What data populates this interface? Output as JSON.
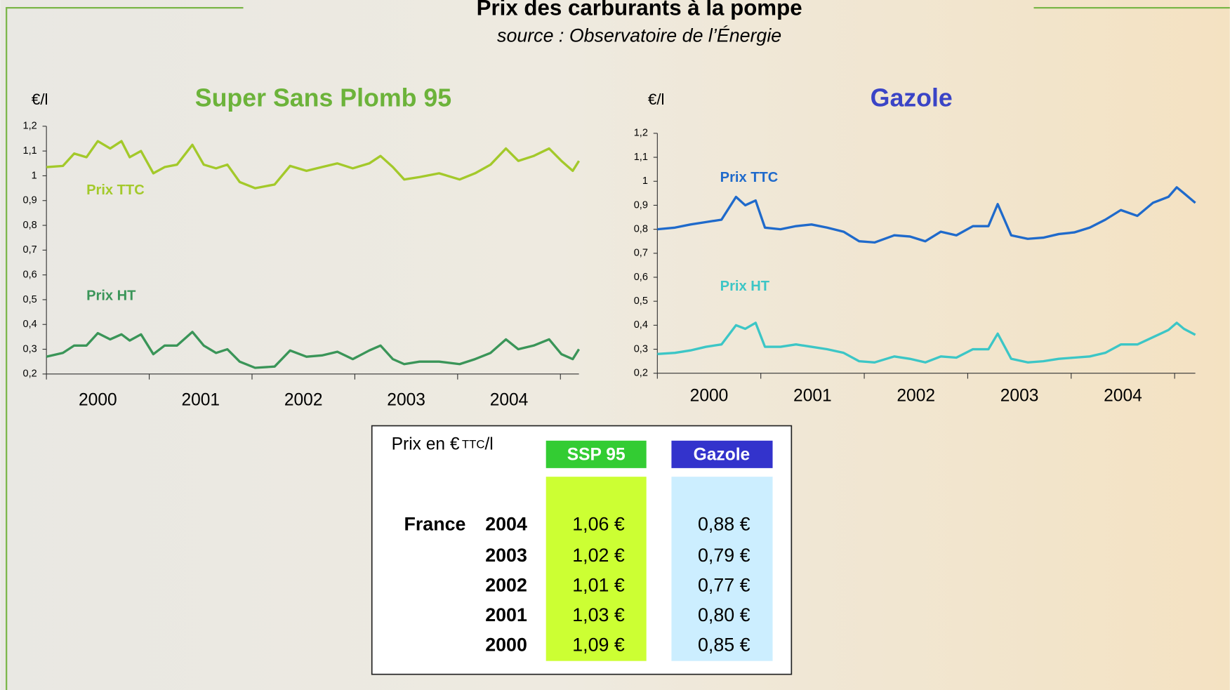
{
  "header": {
    "title": "Prix des carburants à la pompe",
    "subtitle": "source : Observatoire de l’Énergie"
  },
  "chart_data": [
    {
      "type": "line",
      "title": "Super Sans Plomb 95",
      "y_label": "€/l",
      "categories": [
        "2000",
        "2001",
        "2002",
        "2003",
        "2004"
      ],
      "x": [
        2000.0,
        2000.16,
        2000.27,
        2000.39,
        2000.5,
        2000.62,
        2000.73,
        2000.81,
        2000.92,
        2001.04,
        2001.15,
        2001.27,
        2001.42,
        2001.53,
        2001.65,
        2001.76,
        2001.88,
        2002.03,
        2002.22,
        2002.37,
        2002.53,
        2002.68,
        2002.83,
        2002.98,
        2003.14,
        2003.25,
        2003.37,
        2003.48,
        2003.63,
        2003.82,
        2004.02,
        2004.17,
        2004.32,
        2004.47,
        2004.59,
        2004.74,
        2004.89,
        2005.01,
        2005.12,
        2005.18
      ],
      "xlim": [
        2000,
        2005.18
      ],
      "xticks": [
        2000,
        2001,
        2002,
        2003,
        2004,
        2005
      ],
      "ylim": [
        0.2,
        1.2
      ],
      "yticks": [
        {
          "value": 0.2,
          "label": "0,2"
        },
        {
          "value": 0.3,
          "label": "0,3"
        },
        {
          "value": 0.4,
          "label": "0,4"
        },
        {
          "value": 0.5,
          "label": "0,5"
        },
        {
          "value": 0.6,
          "label": "0,6"
        },
        {
          "value": 0.7,
          "label": "0,7"
        },
        {
          "value": 0.8,
          "label": "0,8"
        },
        {
          "value": 0.9,
          "label": "0,9"
        },
        1,
        {
          "value": 1.1,
          "label": "1,1"
        },
        {
          "value": 1.2,
          "label": "1,2"
        }
      ],
      "title_color": "#6cb33a",
      "series": [
        {
          "name": "Prix TTC",
          "color": "#a3c92a",
          "values": [
            1.035,
            1.04,
            1.09,
            1.075,
            1.14,
            1.11,
            1.14,
            1.075,
            1.1,
            1.01,
            1.035,
            1.045,
            1.125,
            1.045,
            1.03,
            1.045,
            0.975,
            0.95,
            0.965,
            1.04,
            1.02,
            1.035,
            1.05,
            1.03,
            1.05,
            1.08,
            1.035,
            0.985,
            0.995,
            1.01,
            0.985,
            1.01,
            1.045,
            1.11,
            1.06,
            1.08,
            1.11,
            1.06,
            1.02,
            1.06
          ]
        },
        {
          "name": "Prix HT",
          "color": "#3a9558",
          "values": [
            0.27,
            0.285,
            0.315,
            0.315,
            0.365,
            0.34,
            0.36,
            0.335,
            0.36,
            0.28,
            0.315,
            0.315,
            0.37,
            0.315,
            0.285,
            0.3,
            0.25,
            0.225,
            0.23,
            0.295,
            0.27,
            0.275,
            0.29,
            0.26,
            0.295,
            0.315,
            0.26,
            0.24,
            0.25,
            0.25,
            0.24,
            0.26,
            0.285,
            0.34,
            0.3,
            0.315,
            0.34,
            0.28,
            0.26,
            0.3
          ]
        }
      ]
    },
    {
      "type": "line",
      "title": "Gazole",
      "y_label": "€/l",
      "categories": [
        "2000",
        "2001",
        "2002",
        "2003",
        "2004"
      ],
      "x": [
        2000.0,
        2000.17,
        2000.32,
        2000.47,
        2000.62,
        2000.76,
        2000.85,
        2000.95,
        2001.04,
        2001.19,
        2001.34,
        2001.49,
        2001.64,
        2001.8,
        2001.95,
        2002.1,
        2002.29,
        2002.44,
        2002.59,
        2002.74,
        2002.89,
        2003.05,
        2003.2,
        2003.29,
        2003.42,
        2003.58,
        2003.73,
        2003.88,
        2004.03,
        2004.18,
        2004.33,
        2004.48,
        2004.64,
        2004.79,
        2004.94,
        2005.02,
        2005.09,
        2005.2
      ],
      "xlim": [
        2000,
        2005.2
      ],
      "xticks": [
        2000,
        2001,
        2002,
        2003,
        2004,
        2005
      ],
      "ylim": [
        0.2,
        1.2
      ],
      "yticks": [
        {
          "value": 0.2,
          "label": "0,2"
        },
        {
          "value": 0.3,
          "label": "0,3"
        },
        {
          "value": 0.4,
          "label": "0,4"
        },
        {
          "value": 0.5,
          "label": "0,5"
        },
        {
          "value": 0.6,
          "label": "0,6"
        },
        {
          "value": 0.7,
          "label": "0,7"
        },
        {
          "value": 0.8,
          "label": "0,8"
        },
        {
          "value": 0.9,
          "label": "0,9"
        },
        1,
        {
          "value": 1.1,
          "label": "1,1"
        },
        {
          "value": 1.2,
          "label": "1,2"
        }
      ],
      "title_color": "#3a44c6",
      "series": [
        {
          "name": "Prix TTC",
          "color": "#1f6acb",
          "values": [
            0.8,
            0.807,
            0.82,
            0.83,
            0.84,
            0.935,
            0.9,
            0.92,
            0.807,
            0.8,
            0.813,
            0.82,
            0.807,
            0.79,
            0.75,
            0.745,
            0.775,
            0.77,
            0.75,
            0.79,
            0.775,
            0.813,
            0.813,
            0.905,
            0.775,
            0.76,
            0.765,
            0.78,
            0.787,
            0.807,
            0.84,
            0.88,
            0.856,
            0.91,
            0.935,
            0.975,
            0.95,
            0.91
          ]
        },
        {
          "name": "Prix HT",
          "color": "#3cc6c6",
          "values": [
            0.28,
            0.285,
            0.295,
            0.31,
            0.32,
            0.4,
            0.385,
            0.41,
            0.31,
            0.31,
            0.32,
            0.31,
            0.3,
            0.285,
            0.25,
            0.245,
            0.27,
            0.26,
            0.245,
            0.27,
            0.265,
            0.3,
            0.3,
            0.365,
            0.26,
            0.245,
            0.25,
            0.26,
            0.265,
            0.27,
            0.285,
            0.32,
            0.32,
            0.35,
            0.38,
            0.41,
            0.385,
            0.36
          ]
        }
      ]
    }
  ],
  "table": {
    "caption": "Prix en €",
    "caption_small": "TTC",
    "caption_end": "/l",
    "columns": [
      "SSP 95",
      "Gazole"
    ],
    "row_group": "France",
    "rows": [
      [
        "2004",
        "1,06 €",
        "0,88 €"
      ],
      [
        "2003",
        "1,02 €",
        "0,79 €"
      ],
      [
        "2002",
        "1,01 €",
        "0,77 €"
      ],
      [
        "2001",
        "1,03 €",
        "0,80 €"
      ],
      [
        "2000",
        "1,09 €",
        "0,85 €"
      ]
    ]
  }
}
